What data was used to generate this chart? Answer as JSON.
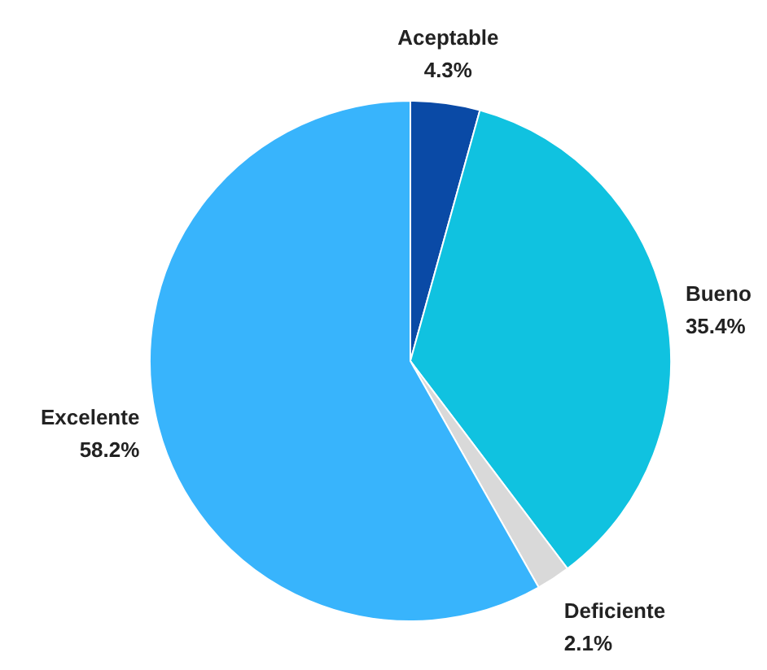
{
  "chart_data": {
    "type": "pie",
    "categories": [
      "Aceptable",
      "Bueno",
      "Deficiente",
      "Excelente"
    ],
    "values": [
      4.3,
      35.4,
      2.1,
      58.2
    ],
    "colors": [
      "#0a4aa6",
      "#10c2e0",
      "#d9d9d9",
      "#38b4fc"
    ],
    "value_labels": [
      "4.3%",
      "35.4%",
      "2.1%",
      "58.2%"
    ]
  }
}
